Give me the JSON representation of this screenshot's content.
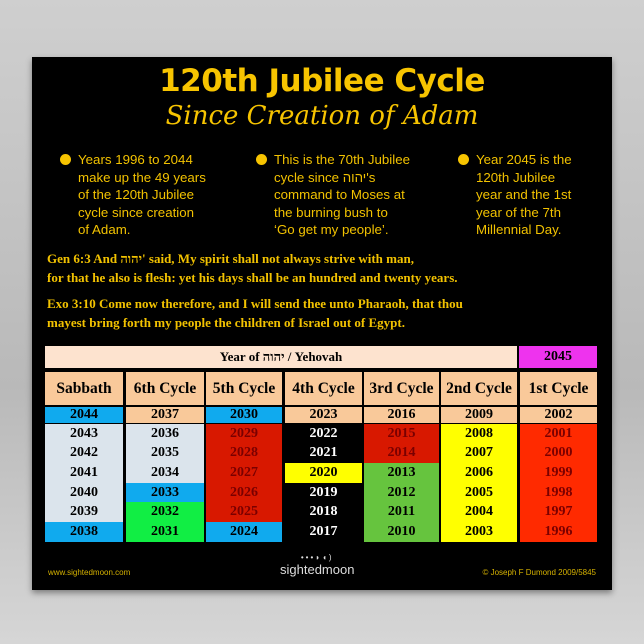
{
  "title": "120th Jubilee Cycle",
  "subtitle": "Since Creation of Adam",
  "bullets": [
    {
      "lines": [
        "Years 1996 to 2044",
        "make up the 49 years",
        "of the 120th Jubilee",
        "cycle since creation",
        "of Adam."
      ]
    },
    {
      "lines": [
        "This is the 70th Jubilee",
        "cycle since יהוה's",
        "command to Moses at",
        "the burning bush to",
        "‘Go get my people’."
      ]
    },
    {
      "lines": [
        "Year 2045 is the",
        "120th Jubilee",
        "year and the 1st",
        "year of the 7th",
        "Millennial Day."
      ]
    }
  ],
  "verses": [
    {
      "lines": [
        "Gen 6:3  And יהוה' said, My spirit shall not always strive with man,",
        "for that he also is flesh: yet his days shall be an hundred and twenty years."
      ]
    },
    {
      "lines": [
        "Exo 3:10  Come now therefore, and I will send thee unto Pharaoh, that thou",
        "mayest bring forth my people the children of Israel out of Egypt."
      ]
    }
  ],
  "table": {
    "banner": "Year  of  יהוה / Yehovah",
    "jubilee_year": "2045",
    "colors": {
      "peach": "#f9c99a",
      "banner": "#fde3cf",
      "magenta": "#ee33ee",
      "blue": "#10aaee",
      "light": "#dbe4ec",
      "red5": "#d81800",
      "red1": "#ff2a00",
      "green6": "#11ee44",
      "green3": "#66c43e",
      "yellow": "#ffff00",
      "black": "#000000"
    },
    "columns": [
      {
        "header": "Sabbath",
        "top": {
          "year": "2044",
          "bg": "blue"
        },
        "cells": [
          [
            "2043",
            "light",
            "#000"
          ],
          [
            "2042",
            "light",
            "#000"
          ],
          [
            "2041",
            "light",
            "#000"
          ],
          [
            "2040",
            "light",
            "#000"
          ],
          [
            "2039",
            "light",
            "#000"
          ],
          [
            "2038",
            "blue",
            "#000"
          ]
        ]
      },
      {
        "header": "6th Cycle",
        "top": {
          "year": "2037",
          "bg": "peach"
        },
        "cells": [
          [
            "2036",
            "light",
            "#000"
          ],
          [
            "2035",
            "light",
            "#000"
          ],
          [
            "2034",
            "light",
            "#000"
          ],
          [
            "2033",
            "blue",
            "#000"
          ],
          [
            "2032",
            "green6",
            "#000"
          ],
          [
            "2031",
            "green6",
            "#000"
          ]
        ]
      },
      {
        "header": "5th Cycle",
        "top": {
          "year": "2030",
          "bg": "blue"
        },
        "cells": [
          [
            "2029",
            "red5",
            "#7a0000"
          ],
          [
            "2028",
            "red5",
            "#7a0000"
          ],
          [
            "2027",
            "red5",
            "#7a0000"
          ],
          [
            "2026",
            "red5",
            "#7a0000"
          ],
          [
            "2025",
            "red5",
            "#7a0000"
          ],
          [
            "2024",
            "blue",
            "#000"
          ]
        ]
      },
      {
        "header": "4th Cycle",
        "top": {
          "year": "2023",
          "bg": "peach"
        },
        "cells": [
          [
            "2022",
            "black",
            "#fff"
          ],
          [
            "2021",
            "black",
            "#fff"
          ],
          [
            "2020",
            "yellow",
            "#000"
          ],
          [
            "2019",
            "black",
            "#fff"
          ],
          [
            "2018",
            "black",
            "#fff"
          ],
          [
            "2017",
            "black",
            "#fff"
          ]
        ]
      },
      {
        "header": "3rd Cycle",
        "top": {
          "year": "2016",
          "bg": "peach"
        },
        "cells": [
          [
            "2015",
            "red5",
            "#7a0000"
          ],
          [
            "2014",
            "red5",
            "#7a0000"
          ],
          [
            "2013",
            "green3",
            "#000"
          ],
          [
            "2012",
            "green3",
            "#000"
          ],
          [
            "2011",
            "green3",
            "#000"
          ],
          [
            "2010",
            "green3",
            "#000"
          ]
        ]
      },
      {
        "header": "2nd Cycle",
        "top": {
          "year": "2009",
          "bg": "peach"
        },
        "cells": [
          [
            "2008",
            "yellow",
            "#000"
          ],
          [
            "2007",
            "yellow",
            "#000"
          ],
          [
            "2006",
            "yellow",
            "#000"
          ],
          [
            "2005",
            "yellow",
            "#000"
          ],
          [
            "2004",
            "yellow",
            "#000"
          ],
          [
            "2003",
            "yellow",
            "#000"
          ]
        ]
      },
      {
        "header": "1st Cycle",
        "top": {
          "year": "2002",
          "bg": "peach"
        },
        "cells": [
          [
            "2001",
            "red1",
            "#7a0000"
          ],
          [
            "2000",
            "red1",
            "#7a0000"
          ],
          [
            "1999",
            "red1",
            "#7a0000"
          ],
          [
            "1998",
            "red1",
            "#7a0000"
          ],
          [
            "1997",
            "red1",
            "#7a0000"
          ],
          [
            "1996",
            "red1",
            "#7a0000"
          ]
        ]
      }
    ]
  },
  "footer": {
    "website": "www.sightedmoon.com",
    "logo": "sightedmoon",
    "copyright": "© Joseph F Dumond 2009/5845"
  }
}
